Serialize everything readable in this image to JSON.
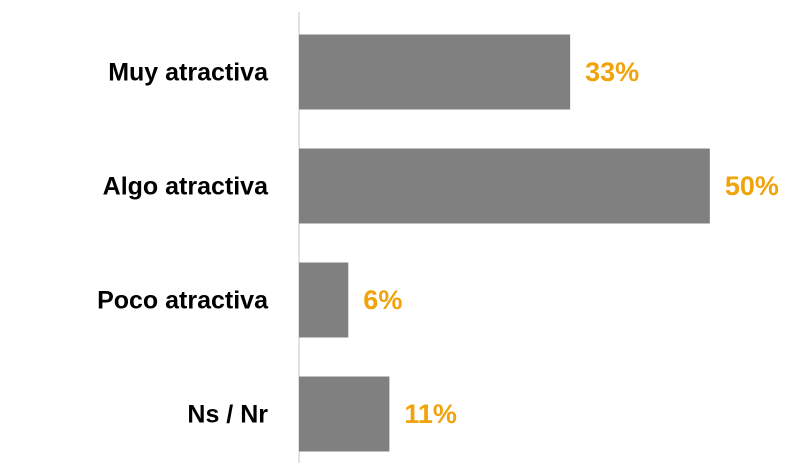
{
  "chart_data": {
    "type": "bar",
    "orientation": "horizontal",
    "categories": [
      "Muy atractiva",
      "Algo atractiva",
      "Poco atractiva",
      "Ns / Nr"
    ],
    "values": [
      33,
      50,
      6,
      11
    ],
    "value_labels": [
      "33%",
      "50%",
      "6%",
      "11%"
    ],
    "color": "#808080",
    "label_color": "#f0a30a",
    "xlim": [
      0,
      60
    ]
  }
}
